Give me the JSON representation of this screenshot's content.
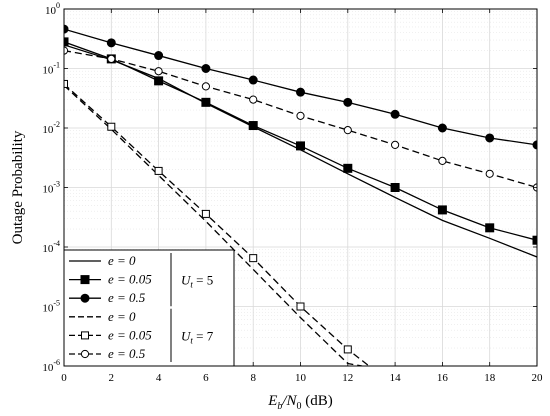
{
  "chart_data": {
    "type": "line",
    "xlabel": {
      "base": "E",
      "sub": "b",
      "mid": "/N",
      "sub2": "0",
      "tail": " (dB)"
    },
    "ylabel": "Outage Probability",
    "x": [
      0,
      2,
      4,
      6,
      8,
      10,
      12,
      14,
      16,
      18,
      20
    ],
    "xlim": [
      0,
      20
    ],
    "ylim": [
      1e-06,
      1
    ],
    "yscale": "log",
    "grid": true,
    "minor_grid": true,
    "x_ticks": [
      "0",
      "2",
      "4",
      "6",
      "8",
      "10",
      "12",
      "14",
      "16",
      "18",
      "20"
    ],
    "y_ticks": [
      {
        "base": "10",
        "exp": "-6",
        "value": 1e-06
      },
      {
        "base": "10",
        "exp": "-5",
        "value": 1e-05
      },
      {
        "base": "10",
        "exp": "-4",
        "value": 0.0001
      },
      {
        "base": "10",
        "exp": "-3",
        "value": 0.001
      },
      {
        "base": "10",
        "exp": "-2",
        "value": 0.01
      },
      {
        "base": "10",
        "exp": "-1",
        "value": 0.1
      },
      {
        "base": "10",
        "exp": "0",
        "value": 1
      }
    ],
    "legend_placement": "bottom-left",
    "series": [
      {
        "name": "e = 0",
        "group": "Ut = 5",
        "style": "solid",
        "marker": "none",
        "x": [
          0,
          2,
          4,
          6,
          8,
          10,
          12,
          14,
          16,
          18,
          20
        ],
        "values": [
          0.25,
          0.14,
          0.068,
          0.026,
          0.0105,
          0.0043,
          0.0017,
          0.00068,
          0.00028,
          0.00014,
          6.8e-05
        ]
      },
      {
        "name": "e = 0.05",
        "group": "Ut = 5",
        "style": "solid",
        "marker": "filled-square",
        "x": [
          0,
          2,
          4,
          6,
          8,
          10,
          12,
          14,
          16,
          18,
          20
        ],
        "values": [
          0.28,
          0.145,
          0.062,
          0.027,
          0.011,
          0.005,
          0.0021,
          0.001,
          0.00042,
          0.00021,
          0.00013
        ]
      },
      {
        "name": "e = 0.5",
        "group": "Ut = 5",
        "style": "solid",
        "marker": "filled-circle",
        "x": [
          0,
          2,
          4,
          6,
          8,
          10,
          12,
          14,
          16,
          18,
          20
        ],
        "values": [
          0.46,
          0.27,
          0.165,
          0.1,
          0.064,
          0.04,
          0.027,
          0.017,
          0.01,
          0.0068,
          0.0052
        ]
      },
      {
        "name": "e = 0",
        "group": "Ut = 7",
        "style": "dashed",
        "marker": "none",
        "x": [
          0,
          2,
          4,
          6,
          8,
          10,
          12,
          12.6
        ],
        "values": [
          0.052,
          0.0095,
          0.0016,
          0.00027,
          4.2e-05,
          6.5e-06,
          1.1e-06,
          1e-06
        ]
      },
      {
        "name": "e = 0.05",
        "group": "Ut = 7",
        "style": "dashed",
        "marker": "open-square",
        "x": [
          0,
          2,
          4,
          6,
          8,
          10,
          12,
          12.9
        ],
        "values": [
          0.055,
          0.0105,
          0.0019,
          0.00036,
          6.5e-05,
          1e-05,
          1.9e-06,
          1e-06
        ]
      },
      {
        "name": "e = 0.5",
        "group": "Ut = 7",
        "style": "dashed",
        "marker": "open-circle",
        "x": [
          0,
          2,
          4,
          6,
          8,
          10,
          12,
          14,
          16,
          18,
          20
        ],
        "values": [
          0.2,
          0.145,
          0.09,
          0.05,
          0.03,
          0.016,
          0.0092,
          0.0052,
          0.0028,
          0.0017,
          0.001
        ]
      }
    ],
    "legend_groups": [
      {
        "label": {
          "base": "U",
          "sub": "t",
          "tail": " = 5"
        }
      },
      {
        "label": {
          "base": "U",
          "sub": "t",
          "tail": " = 7"
        }
      }
    ],
    "legend_entries": [
      {
        "label": "e = 0"
      },
      {
        "label": "e = 0.05"
      },
      {
        "label": "e = 0.5"
      },
      {
        "label": "e = 0"
      },
      {
        "label": "e = 0.05"
      },
      {
        "label": "e = 0.5"
      }
    ],
    "colors": {
      "line": "#000000",
      "grid": "#d9d9d9",
      "minor_grid": "#e6e6e6",
      "marker_fill_open": "#ffffff"
    }
  }
}
